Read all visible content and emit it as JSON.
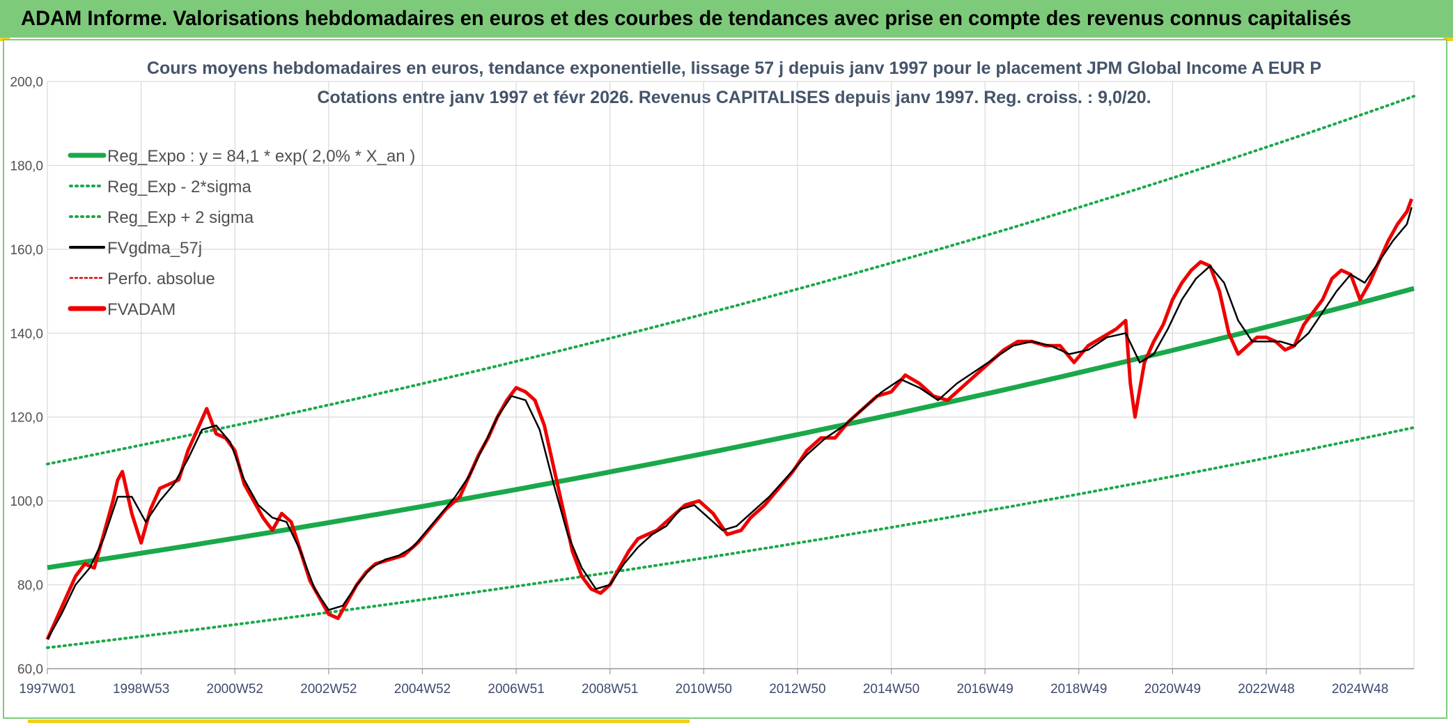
{
  "header": {
    "title": "ADAM Informe. Valorisations hebdomadaires en euros et des courbes de tendances avec prise en compte des revenus connus capitalisés"
  },
  "colors": {
    "banner": "#7dcb7a",
    "trend": "#1aa84a",
    "band": "#1aa84a",
    "fvgdma": "#000000",
    "perfo": "#e00000",
    "fvadam": "#ee0000",
    "grid": "#d9d9d9"
  },
  "chart_data": {
    "type": "line",
    "title": "Cours moyens hebdomadaires en euros, tendance exponentielle, lissage 57 j depuis janv 1997 pour le placement JPM Global Income A EUR P",
    "subtitle": "Cotations entre janv 1997 et févr 2026. Revenus CAPITALISES depuis janv 1997. Reg. croiss. : 9,0/20.",
    "xlabel": "",
    "ylabel": "",
    "xlim": [
      1997.0,
      2026.15
    ],
    "ylim": [
      60,
      200
    ],
    "y_ticks": [
      "60,0",
      "80,0",
      "100,0",
      "120,0",
      "140,0",
      "160,0",
      "180,0",
      "200,0"
    ],
    "x_tick_labels": [
      {
        "x": 1997.0,
        "label": "1997W01"
      },
      {
        "x": 1999.0,
        "label": "1998W53"
      },
      {
        "x": 2001.0,
        "label": "2000W52"
      },
      {
        "x": 2003.0,
        "label": "2002W52"
      },
      {
        "x": 2005.0,
        "label": "2004W52"
      },
      {
        "x": 2007.0,
        "label": "2006W51"
      },
      {
        "x": 2009.0,
        "label": "2008W51"
      },
      {
        "x": 2011.0,
        "label": "2010W50"
      },
      {
        "x": 2013.0,
        "label": "2012W50"
      },
      {
        "x": 2015.0,
        "label": "2014W50"
      },
      {
        "x": 2017.0,
        "label": "2016W49"
      },
      {
        "x": 2019.0,
        "label": "2018W49"
      },
      {
        "x": 2021.0,
        "label": "2020W49"
      },
      {
        "x": 2023.0,
        "label": "2022W48"
      },
      {
        "x": 2025.0,
        "label": "2024W48"
      }
    ],
    "grid": true,
    "legend_position": "top-left",
    "legend": [
      {
        "key": "reg_expo",
        "label": "Reg_Expo : y = 84,1 * exp( 2,0% *  X_an )",
        "style": "solid-thick",
        "color": "#1aa84a"
      },
      {
        "key": "reg_minus",
        "label": "Reg_Exp - 2*sigma",
        "style": "dotted",
        "color": "#1aa84a"
      },
      {
        "key": "reg_plus",
        "label": "Reg_Exp + 2 sigma",
        "style": "dotted",
        "color": "#1aa84a"
      },
      {
        "key": "fvgdma",
        "label": "FVgdma_57j",
        "style": "solid",
        "color": "#000000"
      },
      {
        "key": "perfo",
        "label": "Perfo. absolue",
        "style": "dotted-thin",
        "color": "#e00000"
      },
      {
        "key": "fvadam",
        "label": "FVADAM",
        "style": "solid-thick",
        "color": "#ee0000"
      }
    ],
    "trend": {
      "a": 84.1,
      "growth": 0.02,
      "lower_start": 65.0,
      "lower_end": 117.5,
      "upper_start": 108.8,
      "upper_end": 196.5
    },
    "series": [
      {
        "name": "FVADAM",
        "x": [
          1997.0,
          1997.2,
          1997.4,
          1997.6,
          1997.8,
          1998.0,
          1998.2,
          1998.4,
          1998.5,
          1998.6,
          1998.8,
          1999.0,
          1999.2,
          1999.4,
          1999.6,
          1999.8,
          2000.0,
          2000.2,
          2000.4,
          2000.6,
          2000.8,
          2001.0,
          2001.2,
          2001.4,
          2001.6,
          2001.8,
          2002.0,
          2002.2,
          2002.4,
          2002.6,
          2002.8,
          2003.0,
          2003.2,
          2003.4,
          2003.6,
          2003.8,
          2004.0,
          2004.3,
          2004.6,
          2004.9,
          2005.2,
          2005.5,
          2005.8,
          2006.0,
          2006.2,
          2006.4,
          2006.6,
          2006.8,
          2007.0,
          2007.2,
          2007.4,
          2007.6,
          2007.8,
          2008.0,
          2008.2,
          2008.4,
          2008.6,
          2008.8,
          2009.0,
          2009.2,
          2009.4,
          2009.6,
          2009.8,
          2010.0,
          2010.3,
          2010.6,
          2010.9,
          2011.2,
          2011.5,
          2011.8,
          2012.0,
          2012.3,
          2012.6,
          2012.9,
          2013.2,
          2013.5,
          2013.8,
          2014.1,
          2014.4,
          2014.7,
          2015.0,
          2015.3,
          2015.6,
          2015.9,
          2016.2,
          2016.5,
          2016.8,
          2017.1,
          2017.4,
          2017.7,
          2018.0,
          2018.3,
          2018.6,
          2018.9,
          2019.2,
          2019.5,
          2019.8,
          2020.0,
          2020.1,
          2020.2,
          2020.4,
          2020.6,
          2020.8,
          2021.0,
          2021.2,
          2021.4,
          2021.6,
          2021.8,
          2022.0,
          2022.2,
          2022.4,
          2022.6,
          2022.8,
          2023.0,
          2023.2,
          2023.4,
          2023.6,
          2023.8,
          2024.0,
          2024.2,
          2024.4,
          2024.6,
          2024.8,
          2025.0,
          2025.2,
          2025.4,
          2025.6,
          2025.8,
          2026.0,
          2026.1
        ],
        "values": [
          67,
          72,
          77,
          82,
          85,
          84,
          92,
          100,
          105,
          107,
          97,
          90,
          98,
          103,
          104,
          105,
          112,
          117,
          122,
          116,
          115,
          112,
          104,
          100,
          96,
          93,
          97,
          95,
          88,
          81,
          77,
          73,
          72,
          76,
          80,
          83,
          85,
          86,
          87,
          90,
          94,
          98,
          101,
          106,
          111,
          115,
          120,
          124,
          127,
          126,
          124,
          118,
          108,
          98,
          88,
          82,
          79,
          78,
          80,
          84,
          88,
          91,
          92,
          93,
          96,
          99,
          100,
          97,
          92,
          93,
          96,
          99,
          103,
          107,
          112,
          115,
          115,
          119,
          122,
          125,
          126,
          130,
          128,
          125,
          124,
          127,
          130,
          133,
          136,
          138,
          138,
          137,
          137,
          133,
          137,
          139,
          141,
          143,
          128,
          120,
          133,
          138,
          142,
          148,
          152,
          155,
          157,
          156,
          150,
          140,
          135,
          137,
          139,
          139,
          138,
          136,
          137,
          142,
          145,
          148,
          153,
          155,
          154,
          148,
          152,
          157,
          162,
          166,
          169,
          172
        ]
      },
      {
        "name": "FVgdma_57j",
        "x": [
          1997.0,
          1997.3,
          1997.6,
          1997.9,
          1998.2,
          1998.5,
          1998.8,
          1999.1,
          1999.4,
          1999.7,
          2000.0,
          2000.3,
          2000.6,
          2000.9,
          2001.2,
          2001.5,
          2001.8,
          2002.1,
          2002.4,
          2002.7,
          2003.0,
          2003.3,
          2003.6,
          2003.9,
          2004.2,
          2004.5,
          2004.8,
          2005.1,
          2005.4,
          2005.7,
          2006.0,
          2006.3,
          2006.6,
          2006.9,
          2007.2,
          2007.5,
          2007.8,
          2008.1,
          2008.4,
          2008.7,
          2009.0,
          2009.3,
          2009.6,
          2009.9,
          2010.2,
          2010.5,
          2010.8,
          2011.1,
          2011.4,
          2011.7,
          2012.0,
          2012.4,
          2012.8,
          2013.2,
          2013.6,
          2014.0,
          2014.4,
          2014.8,
          2015.2,
          2015.6,
          2016.0,
          2016.4,
          2016.8,
          2017.2,
          2017.6,
          2018.0,
          2018.4,
          2018.8,
          2019.2,
          2019.6,
          2020.0,
          2020.3,
          2020.6,
          2020.9,
          2021.2,
          2021.5,
          2021.8,
          2022.1,
          2022.4,
          2022.7,
          2023.0,
          2023.3,
          2023.6,
          2023.9,
          2024.2,
          2024.5,
          2024.8,
          2025.1,
          2025.4,
          2025.7,
          2026.0,
          2026.1
        ],
        "values": [
          67,
          73,
          80,
          84,
          91,
          101,
          101,
          95,
          100,
          104,
          110,
          117,
          118,
          114,
          105,
          99,
          96,
          95,
          88,
          79,
          74,
          75,
          80,
          84,
          86,
          87,
          89,
          93,
          97,
          101,
          106,
          113,
          120,
          125,
          124,
          117,
          104,
          92,
          84,
          79,
          80,
          85,
          89,
          92,
          94,
          98,
          99,
          96,
          93,
          94,
          97,
          101,
          106,
          111,
          115,
          118,
          122,
          126,
          129,
          127,
          124,
          128,
          131,
          134,
          137,
          138,
          137,
          135,
          136,
          139,
          140,
          133,
          135,
          141,
          148,
          153,
          156,
          152,
          143,
          138,
          138,
          138,
          137,
          140,
          145,
          150,
          154,
          152,
          157,
          162,
          166,
          170
        ]
      }
    ]
  }
}
